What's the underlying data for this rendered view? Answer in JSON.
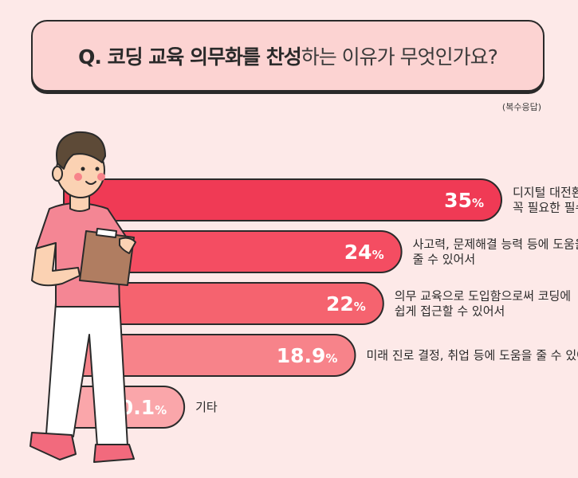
{
  "title": {
    "part_bold": "Q. 코딩 교육 의무화를 찬성",
    "part_light": "하는 이유가 무엇인가요?"
  },
  "note": "(복수응답)",
  "colors": {
    "bar_1": "#f03a55",
    "bar_2": "#f44d62",
    "bar_3": "#f5636f",
    "bar_4": "#f7838a",
    "bar_5": "#faa6aa",
    "outline": "#2a2a2a",
    "background": "#fde9e8"
  },
  "chart_data": {
    "type": "bar",
    "orientation": "horizontal",
    "unit": "%",
    "categories": [
      [
        "디지털 대전환 시대에",
        "꼭 필요한 필수 능력이라서"
      ],
      [
        "사고력, 문제해결 능력 등에 도움을",
        "줄 수 있어서"
      ],
      [
        "의무 교육으로 도입함으로써 코딩에",
        "쉽게 접근할 수 있어서"
      ],
      [
        "미래 진로 결정, 취업 등에 도움을 줄 수 있어서"
      ],
      [
        "기타"
      ]
    ],
    "values": [
      35,
      24,
      22,
      18.9,
      0.1
    ],
    "value_labels": [
      "35",
      "24",
      "22",
      "18.9",
      "0.1"
    ]
  }
}
